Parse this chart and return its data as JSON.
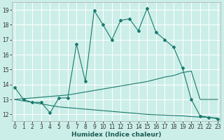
{
  "xlabel": "Humidex (Indice chaleur)",
  "bg_color": "#cceee8",
  "grid_color": "#ffffff",
  "line_color": "#1a7a6e",
  "xticks": [
    0,
    1,
    2,
    3,
    4,
    5,
    6,
    7,
    8,
    9,
    10,
    11,
    12,
    13,
    14,
    15,
    16,
    17,
    18,
    19,
    20,
    21,
    22,
    23
  ],
  "yticks": [
    12,
    13,
    14,
    15,
    16,
    17,
    18,
    19
  ],
  "line1_x": [
    0,
    1,
    2,
    3,
    4,
    5,
    6,
    7,
    8,
    9,
    10,
    11,
    12,
    13,
    14,
    15,
    16,
    17,
    18,
    19,
    20,
    21,
    22,
    23
  ],
  "line1_y": [
    13.8,
    13.0,
    12.8,
    12.8,
    12.1,
    13.1,
    13.1,
    16.7,
    14.2,
    18.95,
    18.0,
    17.0,
    18.3,
    18.4,
    17.6,
    19.1,
    17.5,
    17.0,
    16.5,
    15.1,
    13.0,
    11.9,
    11.8,
    11.7
  ],
  "line2_x": [
    0,
    1,
    2,
    3,
    4,
    5,
    6,
    7,
    8,
    9,
    10,
    11,
    12,
    13,
    14,
    15,
    16,
    17,
    18,
    19,
    20,
    21,
    22,
    23
  ],
  "line2_y": [
    13.0,
    13.05,
    13.1,
    13.15,
    13.2,
    13.25,
    13.3,
    13.4,
    13.5,
    13.6,
    13.7,
    13.8,
    13.9,
    14.0,
    14.1,
    14.2,
    14.35,
    14.5,
    14.6,
    14.8,
    14.9,
    13.0,
    13.0,
    13.0
  ],
  "line3_x": [
    0,
    1,
    2,
    3,
    4,
    5,
    6,
    7,
    8,
    9,
    10,
    11,
    12,
    13,
    14,
    15,
    16,
    17,
    18,
    19,
    20,
    21,
    22,
    23
  ],
  "line3_y": [
    13.0,
    12.9,
    12.8,
    12.7,
    12.6,
    12.5,
    12.45,
    12.4,
    12.35,
    12.3,
    12.25,
    12.2,
    12.15,
    12.1,
    12.05,
    12.0,
    11.97,
    11.95,
    11.92,
    11.9,
    11.85,
    11.82,
    11.8,
    11.75
  ],
  "font_size_label": 6.5,
  "font_size_tick": 5.5
}
